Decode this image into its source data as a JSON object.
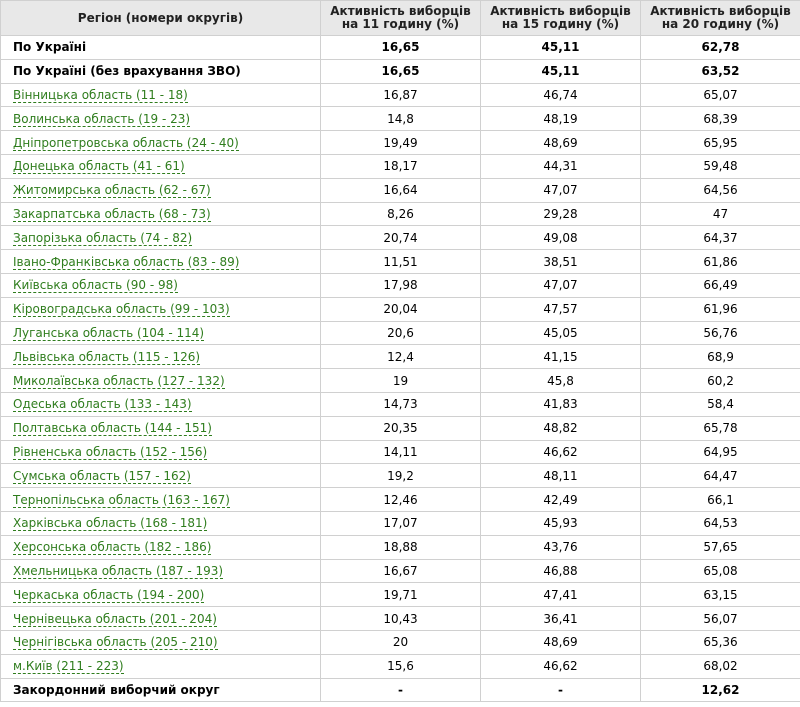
{
  "table": {
    "headers": [
      "Регіон (номери округів)",
      "Активність виборців на 11 годину (%)",
      "Активність виборців на 15 годину (%)",
      "Активність виборців на 20 годину (%)"
    ],
    "rows": [
      {
        "region": "По Україні",
        "link": false,
        "bold": true,
        "h11": "16,65",
        "h15": "45,11",
        "h20": "62,78"
      },
      {
        "region": "По Україні (без врахування ЗВО)",
        "link": false,
        "bold": true,
        "h11": "16,65",
        "h15": "45,11",
        "h20": "63,52"
      },
      {
        "region": "Вінницька область (11 - 18)",
        "link": true,
        "bold": false,
        "h11": "16,87",
        "h15": "46,74",
        "h20": "65,07"
      },
      {
        "region": "Волинська область (19 - 23)",
        "link": true,
        "bold": false,
        "h11": "14,8",
        "h15": "48,19",
        "h20": "68,39"
      },
      {
        "region": "Дніпропетровська область (24 - 40)",
        "link": true,
        "bold": false,
        "h11": "19,49",
        "h15": "48,69",
        "h20": "65,95"
      },
      {
        "region": "Донецька область (41 - 61)",
        "link": true,
        "bold": false,
        "h11": "18,17",
        "h15": "44,31",
        "h20": "59,48"
      },
      {
        "region": "Житомирська область (62 - 67)",
        "link": true,
        "bold": false,
        "h11": "16,64",
        "h15": "47,07",
        "h20": "64,56"
      },
      {
        "region": "Закарпатська область (68 - 73)",
        "link": true,
        "bold": false,
        "h11": "8,26",
        "h15": "29,28",
        "h20": "47"
      },
      {
        "region": "Запорізька область (74 - 82)",
        "link": true,
        "bold": false,
        "h11": "20,74",
        "h15": "49,08",
        "h20": "64,37"
      },
      {
        "region": "Івано-Франківська область (83 - 89)",
        "link": true,
        "bold": false,
        "h11": "11,51",
        "h15": "38,51",
        "h20": "61,86"
      },
      {
        "region": "Київська область (90 - 98)",
        "link": true,
        "bold": false,
        "h11": "17,98",
        "h15": "47,07",
        "h20": "66,49"
      },
      {
        "region": "Кіровоградська область (99 - 103)",
        "link": true,
        "bold": false,
        "h11": "20,04",
        "h15": "47,57",
        "h20": "61,96"
      },
      {
        "region": "Луганська область (104 - 114)",
        "link": true,
        "bold": false,
        "h11": "20,6",
        "h15": "45,05",
        "h20": "56,76"
      },
      {
        "region": "Львівська область (115 - 126)",
        "link": true,
        "bold": false,
        "h11": "12,4",
        "h15": "41,15",
        "h20": "68,9"
      },
      {
        "region": "Миколаївська область (127 - 132)",
        "link": true,
        "bold": false,
        "h11": "19",
        "h15": "45,8",
        "h20": "60,2"
      },
      {
        "region": "Одеська область (133 - 143)",
        "link": true,
        "bold": false,
        "h11": "14,73",
        "h15": "41,83",
        "h20": "58,4"
      },
      {
        "region": "Полтавська область (144 - 151)",
        "link": true,
        "bold": false,
        "h11": "20,35",
        "h15": "48,82",
        "h20": "65,78"
      },
      {
        "region": "Рівненська область (152 - 156)",
        "link": true,
        "bold": false,
        "h11": "14,11",
        "h15": "46,62",
        "h20": "64,95"
      },
      {
        "region": "Сумська область (157 - 162)",
        "link": true,
        "bold": false,
        "h11": "19,2",
        "h15": "48,11",
        "h20": "64,47"
      },
      {
        "region": "Тернопільська область (163 - 167)",
        "link": true,
        "bold": false,
        "h11": "12,46",
        "h15": "42,49",
        "h20": "66,1"
      },
      {
        "region": "Харківська область (168 - 181)",
        "link": true,
        "bold": false,
        "h11": "17,07",
        "h15": "45,93",
        "h20": "64,53"
      },
      {
        "region": "Херсонська область (182 - 186)",
        "link": true,
        "bold": false,
        "h11": "18,88",
        "h15": "43,76",
        "h20": "57,65"
      },
      {
        "region": "Хмельницька область (187 - 193)",
        "link": true,
        "bold": false,
        "h11": "16,67",
        "h15": "46,88",
        "h20": "65,08"
      },
      {
        "region": "Черкаська область (194 - 200)",
        "link": true,
        "bold": false,
        "h11": "19,71",
        "h15": "47,41",
        "h20": "63,15"
      },
      {
        "region": "Чернівецька область (201 - 204)",
        "link": true,
        "bold": false,
        "h11": "10,43",
        "h15": "36,41",
        "h20": "56,07"
      },
      {
        "region": "Чернігівська область (205 - 210)",
        "link": true,
        "bold": false,
        "h11": "20",
        "h15": "48,69",
        "h20": "65,36"
      },
      {
        "region": "м.Київ (211 - 223)",
        "link": true,
        "bold": false,
        "h11": "15,6",
        "h15": "46,62",
        "h20": "68,02"
      },
      {
        "region": "Закордонний виборчий округ",
        "link": false,
        "bold": true,
        "h11": "-",
        "h15": "-",
        "h20": "12,62"
      }
    ]
  },
  "colors": {
    "link": "#2f7d1d",
    "header_bg": "#e8e8e8",
    "border": "#d0d0d0"
  }
}
